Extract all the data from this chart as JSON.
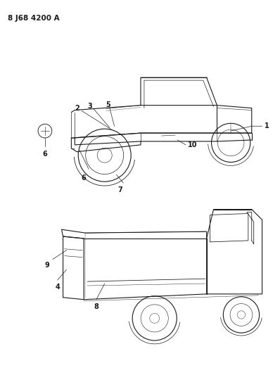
{
  "title": "8 J68 4200 A",
  "bg_color": "#ffffff",
  "line_color": "#1a1a1a",
  "title_fontsize": 7.5,
  "fig_width": 3.98,
  "fig_height": 5.33,
  "dpi": 100
}
